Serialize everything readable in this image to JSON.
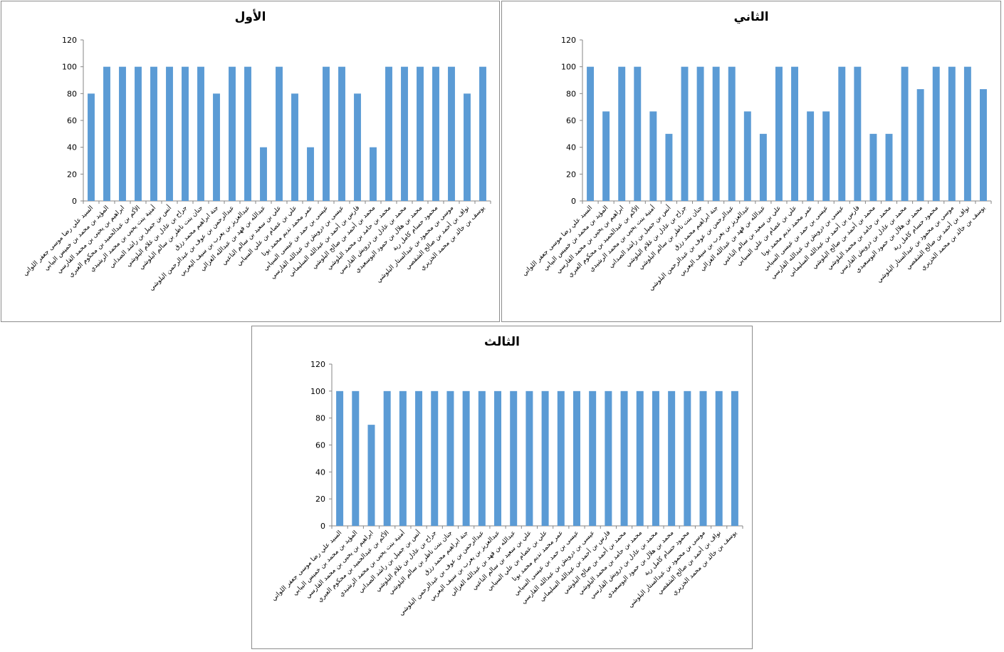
{
  "colors": {
    "bar": "#5b9bd5",
    "axis": "#868686",
    "text": "#000000"
  },
  "chart_data": [
    {
      "type": "bar",
      "title": "الأول",
      "ylim": [
        0,
        120
      ],
      "yticks": [
        0,
        20,
        40,
        60,
        80,
        100,
        120
      ],
      "grid": false,
      "legend": "none",
      "categories": [
        "السيد علي رضا موسى جعفر اللواتي",
        "المؤيد بن محمد بن خميس البيابي",
        "ابراهيم بن يحيى بن محمد القارسي",
        "الأكم بن عبدالحميد بن محكوم العبري",
        "أمنية بنت يحيى بن محمد الرشيدي",
        "أنس بن جميل بن راشد الصداني",
        "جراح بن عادل بن غلام البلوشي",
        "جنان بنت ناظر بن سالم البلوشي",
        "جنة ابراهيم محمد رزق",
        "عبدالرحمن بن عوف بن عبدالرحمن البلوشي",
        "عبدالعزيز بن يعرب بن سيف اليعربي",
        "عبدالله بن فهد بن عبدالله الغزالي",
        "علي بن سعيد بن سالم الناعبي",
        "علي بن عصام بن علي السيابي",
        "عمر محمد نديم محمد يونا",
        "عيسى بن حمد بن عيسى السيابي",
        "عيسى بن درويش بن عبدالله القارسي",
        "فارس بن أحمد بن عبدالله السليماني",
        "محمد بن أحمد بن صالح البلوشي",
        "محمد بن حامد بن محمد البلوشي",
        "محمد بن عادل بن درويش القارسي",
        "محمد بن هلال بن حمود اليوسعيدي",
        "محمود حسام كامل رية",
        "موسى بن محمود بن عبدالستار البلوشي",
        "نواف بن أحمد بن صالح الشقصي",
        "يوسف بن خالد بن محمد الخزيري"
      ],
      "values": [
        80,
        100,
        100,
        100,
        100,
        100,
        100,
        100,
        80,
        100,
        100,
        40,
        100,
        80,
        40,
        100,
        100,
        80,
        40,
        100,
        100,
        100,
        100,
        100,
        80,
        100
      ]
    },
    {
      "type": "bar",
      "title": "الثاني",
      "ylim": [
        0,
        120
      ],
      "yticks": [
        0,
        20,
        40,
        60,
        80,
        100,
        120
      ],
      "grid": false,
      "legend": "none",
      "categories": [
        "السيد علي رضا موسى جعفر اللواتي",
        "المؤيد بن محمد بن خميس البيابي",
        "ابراهيم بن يحيى بن محمد القارسي",
        "الأكم بن عبدالحميد بن محكوم العبري",
        "أمنية بنت يحيى بن محمد الرشيدي",
        "أنس بن جميل بن راشد الصداني",
        "جراح بن عادل بن غلام البلوشي",
        "جنان بنت ناظر بن سالم البلوشي",
        "جنة ابراهيم محمد رزق",
        "عبدالرحمن بن عوف بن عبدالرحمن البلوشي",
        "عبدالعزيز بن يعرب بن سيف اليعربي",
        "عبدالله بن فهد بن عبدالله الغزالي",
        "علي بن سعيد بن سالم الناعبي",
        "علي بن عصام بن علي السيابي",
        "عمر محمد نديم محمد يونا",
        "عيسى بن حمد بن عيسى السيابي",
        "عيسى بن درويش بن عبدالله القارسي",
        "فارس بن أحمد بن عبدالله السليماني",
        "محمد بن أحمد بن صالح البلوشي",
        "محمد بن حامد بن محمد البلوشي",
        "محمد بن عادل بن درويش القارسي",
        "محمد بن هلال بن حمود اليوسعيدي",
        "محمود حسام كامل رية",
        "موسى بن محمود بن عبدالستار البلوشي",
        "نواف بن أحمد بن صالح الشقصي",
        "يوسف بن خالد بن محمد الخزيري"
      ],
      "values": [
        100,
        66.7,
        100,
        100,
        66.7,
        50,
        100,
        100,
        100,
        100,
        66.7,
        50,
        100,
        100,
        66.7,
        66.7,
        100,
        100,
        50,
        50,
        100,
        83.3,
        100,
        100,
        100,
        83.3
      ]
    },
    {
      "type": "bar",
      "title": "الثالث",
      "ylim": [
        0,
        120
      ],
      "yticks": [
        0,
        20,
        40,
        60,
        80,
        100,
        120
      ],
      "grid": false,
      "legend": "none",
      "categories": [
        "السيد علي رضا موسى جعفر اللواتي",
        "المؤيد بن محمد بن خميس البيابي",
        "ابراهيم بن يحيى بن محمد القارسي",
        "الأكم بن عبدالحميد بن محكوم العبري",
        "أمنية بنت يحيى بن محمد الرشيدي",
        "أنس بن جميل بن راشد الصداني",
        "جراح بن عادل بن غلام البلوشي",
        "جنان بنت ناظر بن سالم البلوشي",
        "جنة ابراهيم محمد رزق",
        "عبدالرحمن بن عوف بن عبدالرحمن البلوشي",
        "عبدالعزيز بن يعرب بن سيف اليعربي",
        "عبدالله بن فهد بن عبدالله الغزالي",
        "علي بن سعيد بن سالم الناعبي",
        "علي بن عصام بن علي السيابي",
        "عمر محمد نديم محمد يونا",
        "عيسى بن حمد بن عيسى السيابي",
        "عيسى بن درويش بن عبدالله القارسي",
        "فارس بن أحمد بن عبدالله السليماني",
        "محمد بن أحمد بن صالح البلوشي",
        "محمد بن حامد بن محمد البلوشي",
        "محمد بن عادل بن درويش القارسي",
        "محمد بن هلال بن حمود اليوسعيدي",
        "محمود حسام كامل رية",
        "موسى بن محمود بن عبدالستار البلوشي",
        "نواف بن أحمد بن صالح الشقصي",
        "يوسف بن خالد بن محمد الخزيري"
      ],
      "values": [
        100,
        100,
        75,
        100,
        100,
        100,
        100,
        100,
        100,
        100,
        100,
        100,
        100,
        100,
        100,
        100,
        100,
        100,
        100,
        100,
        100,
        100,
        100,
        100,
        100,
        100
      ]
    }
  ]
}
